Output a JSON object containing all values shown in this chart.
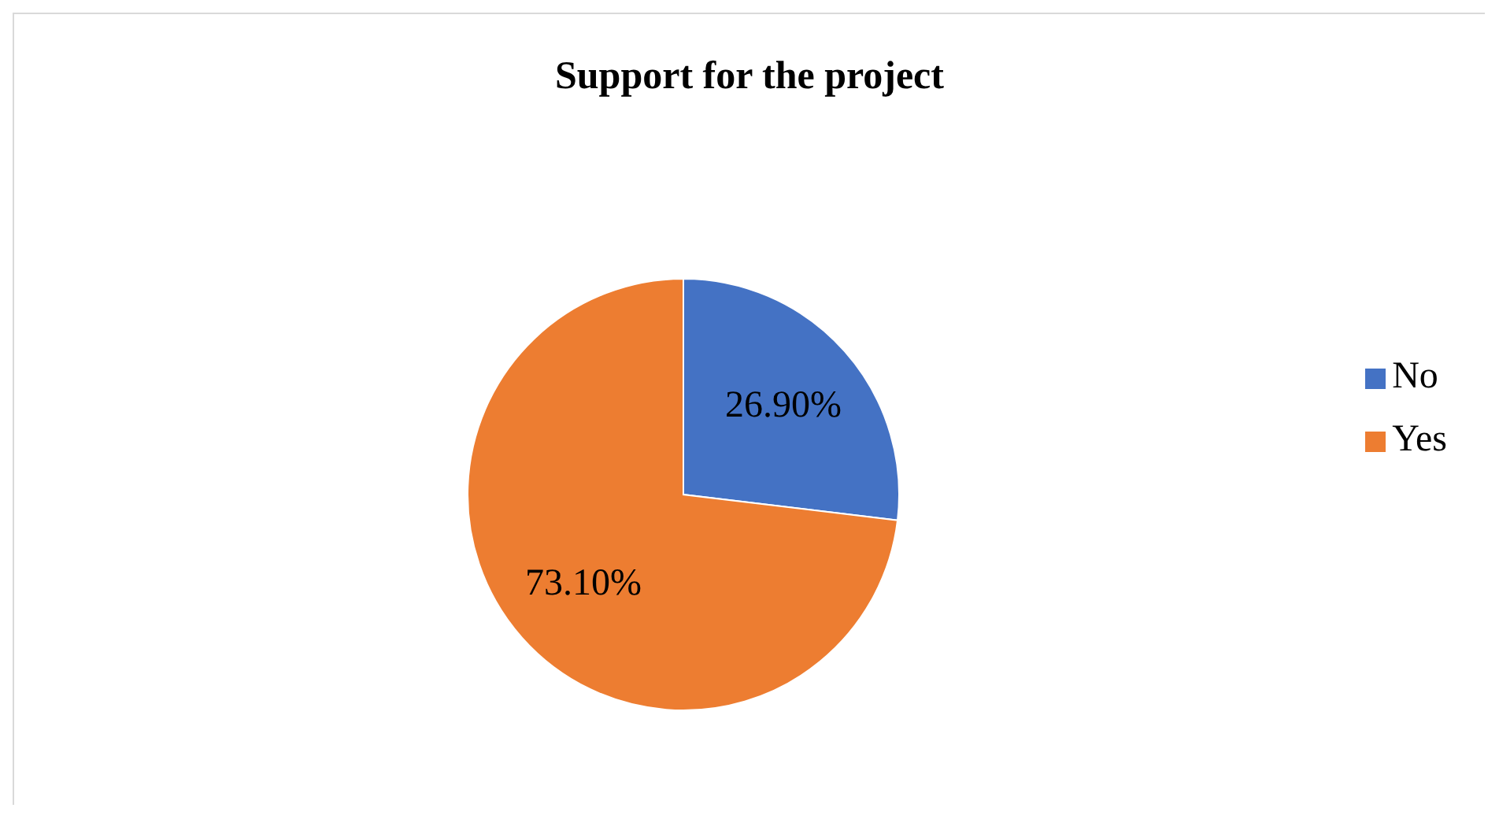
{
  "chart_data": {
    "type": "pie",
    "title": "Support for the project",
    "categories": [
      "No",
      "Yes"
    ],
    "values": [
      26.9,
      73.1
    ],
    "colors": [
      "#4472c4",
      "#ed7d31"
    ],
    "value_labels": [
      "26.90%",
      "73.10%"
    ],
    "legend": "right"
  }
}
